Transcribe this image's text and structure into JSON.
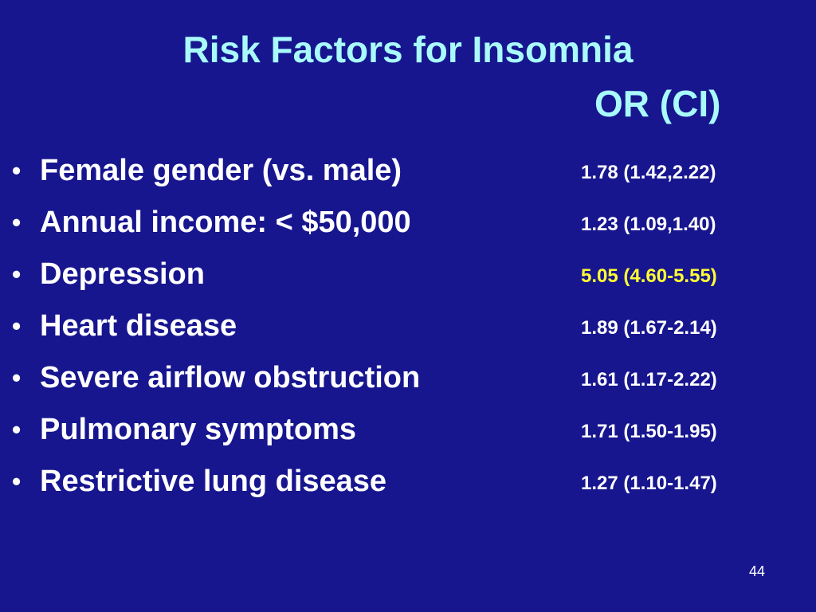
{
  "slide": {
    "title": "Risk Factors for Insomnia",
    "column_header": "OR (CI)",
    "bullet_glyph": "•",
    "rows": [
      {
        "label": "Female gender (vs. male)",
        "value": "1.78 (1.42,2.22)",
        "highlight": false
      },
      {
        "label": "Annual income: < $50,000",
        "value": "1.23 (1.09,1.40)",
        "highlight": false
      },
      {
        "label": "Depression",
        "value": "5.05 (4.60-5.55)",
        "highlight": true
      },
      {
        "label": "Heart disease",
        "value": "1.89 (1.67-2.14)",
        "highlight": false
      },
      {
        "label": "Severe airflow obstruction",
        "value": "1.61 (1.17-2.22)",
        "highlight": false
      },
      {
        "label": "Pulmonary symptoms",
        "value": "1.71 (1.50-1.95)",
        "highlight": false
      },
      {
        "label": "Restrictive lung disease",
        "value": "1.27 (1.10-1.47)",
        "highlight": false
      }
    ],
    "page_number": "44"
  },
  "colors": {
    "background": "#17168f",
    "title": "#a9fafa",
    "text": "#ffffff",
    "highlight": "#ffff33"
  }
}
